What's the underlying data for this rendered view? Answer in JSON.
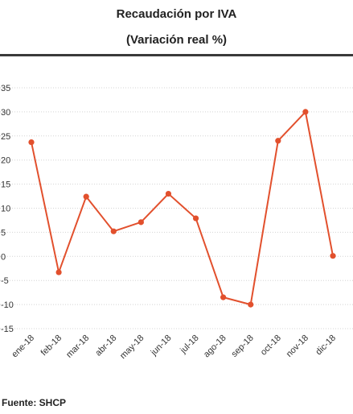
{
  "header": {
    "title": "Recaudación por IVA",
    "subtitle": "(Variación real %)"
  },
  "footer": {
    "source": "Fuente: SHCP"
  },
  "colors": {
    "series": "#e2502d",
    "grid": "#d4d4d4",
    "rule": "#3a3a3a"
  },
  "chart_data": {
    "type": "line",
    "title": "Recaudación por IVA",
    "subtitle": "(Variación real %)",
    "categories": [
      "ene-18",
      "feb-18",
      "mar-18",
      "abr-18",
      "may-18",
      "jun-18",
      "jul-18",
      "ago-18",
      "sep-18",
      "oct-18",
      "nov-18",
      "dic-18"
    ],
    "series": [
      {
        "values": [
          23.7,
          -3.3,
          12.4,
          5.2,
          7.1,
          13.0,
          7.9,
          -8.5,
          -10.0,
          24.0,
          30.0,
          0.1
        ]
      }
    ],
    "ylim": [
      -15,
      35
    ],
    "yticks": [
      35,
      30,
      25,
      20,
      15,
      10,
      5,
      0,
      -5,
      -10,
      -15
    ],
    "grid": true,
    "legend": "none"
  }
}
